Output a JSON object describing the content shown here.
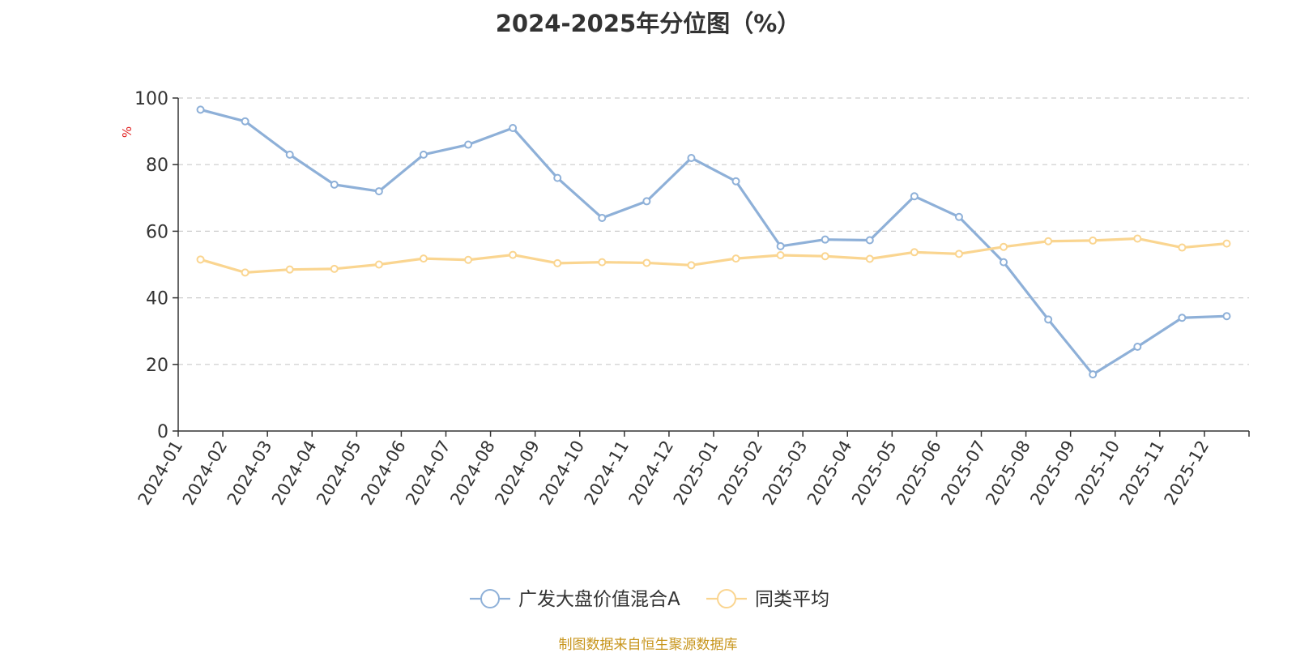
{
  "chart_data": {
    "type": "line",
    "title": "2024-2025年分位图（%）",
    "ylabel": "%",
    "xlabel": "",
    "ylim": [
      0,
      100
    ],
    "yticks": [
      0,
      20,
      40,
      60,
      80,
      100
    ],
    "grid": true,
    "legend_position": "bottom-center",
    "categories": [
      "2024-01",
      "2024-02",
      "2024-03",
      "2024-04",
      "2024-05",
      "2024-06",
      "2024-07",
      "2024-08",
      "2024-09",
      "2024-10",
      "2024-11",
      "2024-12",
      "2025-01",
      "2025-02",
      "2025-03",
      "2025-04",
      "2025-05",
      "2025-06",
      "2025-07",
      "2025-08",
      "2025-09",
      "2025-10",
      "2025-11",
      "2025-12"
    ],
    "series": [
      {
        "name": "广发大盘价值混合A",
        "color": "#8eb0d8",
        "values": [
          96.5,
          93,
          83,
          74,
          72,
          83,
          86,
          91,
          76,
          64,
          69,
          82,
          75,
          55.5,
          57.5,
          57.3,
          70.5,
          64.3,
          50.7,
          33.5,
          17,
          25.3,
          34,
          34.5
        ]
      },
      {
        "name": "同类平均",
        "color": "#fad590",
        "values": [
          51.5,
          47.6,
          48.5,
          48.7,
          50,
          51.8,
          51.4,
          52.9,
          50.4,
          50.7,
          50.5,
          49.8,
          51.8,
          52.8,
          52.5,
          51.7,
          53.7,
          53.2,
          55.3,
          57,
          57.2,
          57.8,
          55.1,
          56.3
        ]
      }
    ]
  },
  "source": "制图数据来自恒生聚源数据库"
}
